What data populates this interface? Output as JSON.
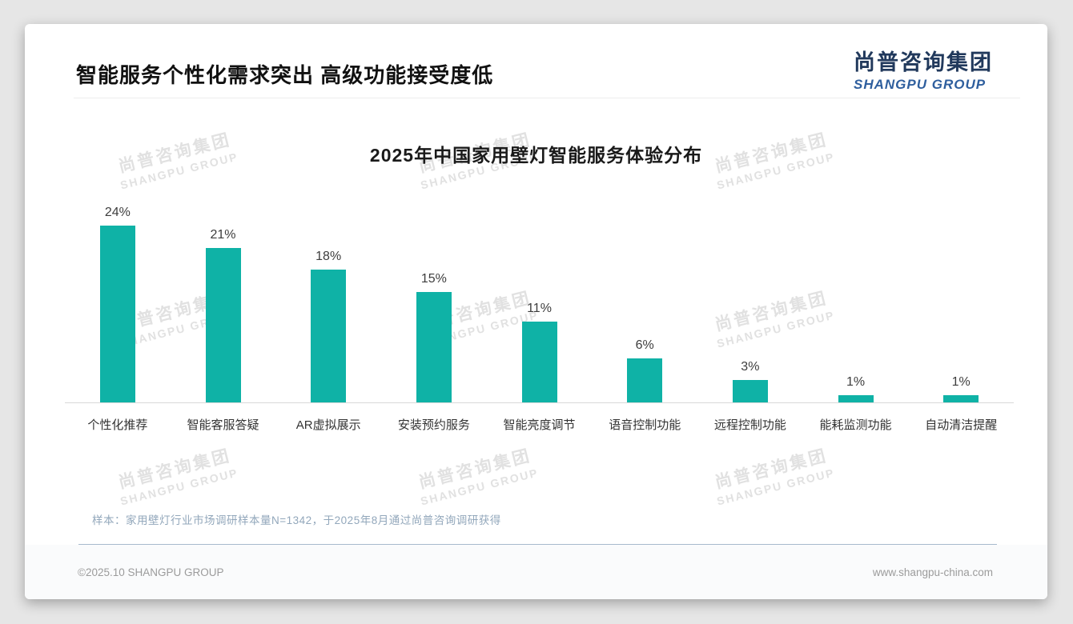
{
  "header": {
    "title": "智能服务个性化需求突出 高级功能接受度低"
  },
  "brand": {
    "name_cn": "尚普咨询集团",
    "name_en": "SHANGPU GROUP"
  },
  "watermark": {
    "line1": "尚普咨询集团",
    "line2": "SHANGPU GROUP"
  },
  "chart_data": {
    "type": "bar",
    "title": "2025年中国家用壁灯智能服务体验分布",
    "categories": [
      "个性化推荐",
      "智能客服答疑",
      "AR虚拟展示",
      "安装预约服务",
      "智能亮度调节",
      "语音控制功能",
      "远程控制功能",
      "能耗监测功能",
      "自动清洁提醒"
    ],
    "values": [
      24,
      21,
      18,
      15,
      11,
      6,
      3,
      1,
      1
    ],
    "value_labels": [
      "24%",
      "21%",
      "18%",
      "15%",
      "11%",
      "6%",
      "3%",
      "1%",
      "1%"
    ],
    "unit": "%",
    "xlabel": "",
    "ylabel": "",
    "ylim": [
      0,
      25
    ],
    "grid": false,
    "legend": false,
    "bar_color": "#0FB2A6"
  },
  "footnote": {
    "text": "样本：家用壁灯行业市场调研样本量N=1342，于2025年8月通过尚普咨询调研获得"
  },
  "footer": {
    "copyright": "©2025.10 SHANGPU GROUP",
    "website": "www.shangpu-china.com"
  }
}
